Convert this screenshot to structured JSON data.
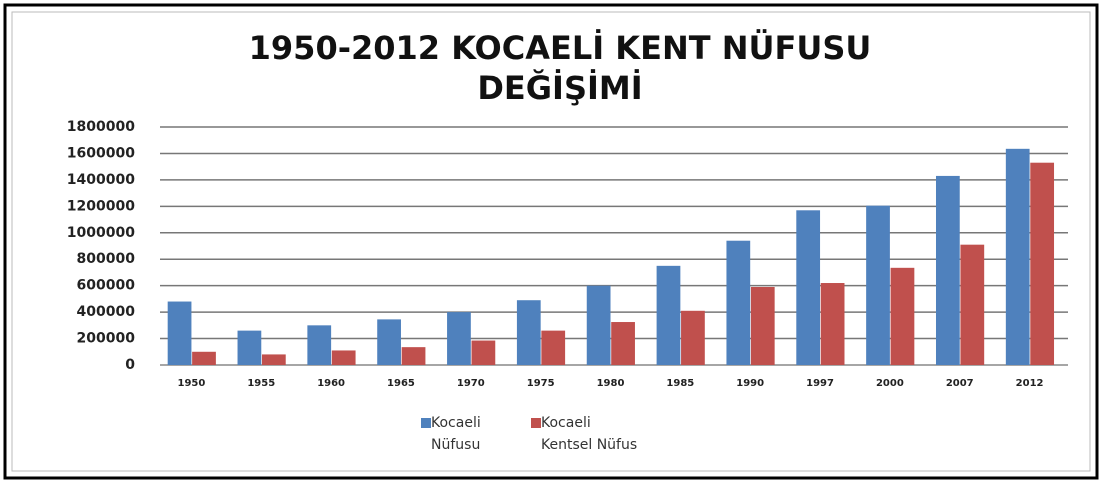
{
  "chart_data": {
    "type": "bar",
    "title": [
      "1950-2012 KOCAELİ KENT NÜFUSU",
      "DEĞİŞİMİ"
    ],
    "categories": [
      "1950",
      "1955",
      "1960",
      "1965",
      "1970",
      "1975",
      "1980",
      "1985",
      "1990",
      "1997",
      "2000",
      "2007",
      "2012"
    ],
    "series": [
      {
        "name": "Kocaeli Nüfusu",
        "color": "#4f81bd",
        "values": [
          480000,
          260000,
          300000,
          345000,
          400000,
          490000,
          600000,
          750000,
          940000,
          1170000,
          1205000,
          1430000,
          1635000
        ]
      },
      {
        "name": "Kocaeli Kentsel Nüfus",
        "color": "#c0504d",
        "values": [
          100000,
          80000,
          110000,
          135000,
          185000,
          260000,
          325000,
          410000,
          590000,
          620000,
          735000,
          910000,
          1530000
        ]
      }
    ],
    "ylim": [
      0,
      1800000
    ],
    "yticks": [
      0,
      200000,
      400000,
      600000,
      800000,
      1000000,
      1200000,
      1400000,
      1600000,
      1800000
    ],
    "grid": true,
    "legend": "bottom"
  }
}
